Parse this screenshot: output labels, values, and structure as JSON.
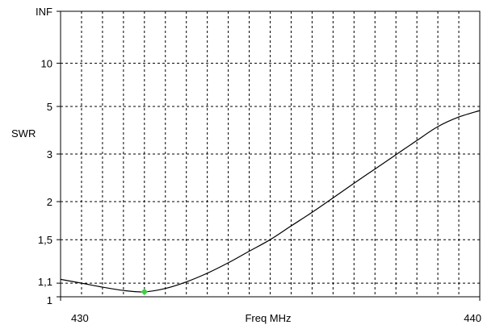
{
  "chart_data": {
    "type": "line",
    "title": "",
    "xlabel": "Freq MHz",
    "ylabel": "SWR",
    "x_scale": "linear",
    "y_scale": "reflection-coefficient (SWR)",
    "xlim": [
      430,
      440
    ],
    "ylim": [
      1,
      "INF"
    ],
    "grid": true,
    "grid_style": "dashed",
    "y_ticks": [
      {
        "value": 1,
        "label": "1"
      },
      {
        "value": 1.1,
        "label": "1,1"
      },
      {
        "value": 1.5,
        "label": "1,5"
      },
      {
        "value": 2,
        "label": "2"
      },
      {
        "value": 3,
        "label": "3"
      },
      {
        "value": 5,
        "label": "5"
      },
      {
        "value": 10,
        "label": "10"
      },
      {
        "value": "INF",
        "label": "INF"
      }
    ],
    "x_tick_labels": [
      {
        "value": 430,
        "label": "430"
      },
      {
        "value": 440,
        "label": "440"
      }
    ],
    "x_grid_step": 0.5,
    "series": [
      {
        "color": "#000000",
        "points": [
          {
            "x": 430.0,
            "y": 1.13
          },
          {
            "x": 430.5,
            "y": 1.1
          },
          {
            "x": 431.0,
            "y": 1.07
          },
          {
            "x": 431.5,
            "y": 1.045
          },
          {
            "x": 432.0,
            "y": 1.035
          },
          {
            "x": 432.5,
            "y": 1.06
          },
          {
            "x": 433.0,
            "y": 1.11
          },
          {
            "x": 433.5,
            "y": 1.18
          },
          {
            "x": 434.0,
            "y": 1.27
          },
          {
            "x": 434.5,
            "y": 1.38
          },
          {
            "x": 435.0,
            "y": 1.5
          },
          {
            "x": 435.5,
            "y": 1.66
          },
          {
            "x": 436.0,
            "y": 1.84
          },
          {
            "x": 436.5,
            "y": 2.06
          },
          {
            "x": 437.0,
            "y": 2.32
          },
          {
            "x": 437.5,
            "y": 2.62
          },
          {
            "x": 438.0,
            "y": 2.98
          },
          {
            "x": 438.5,
            "y": 3.42
          },
          {
            "x": 439.0,
            "y": 3.95
          },
          {
            "x": 439.5,
            "y": 4.4
          },
          {
            "x": 440.0,
            "y": 4.75
          }
        ]
      }
    ],
    "markers": [
      {
        "x": 432.0,
        "y": 1.035,
        "color": "#44cc44"
      }
    ]
  }
}
